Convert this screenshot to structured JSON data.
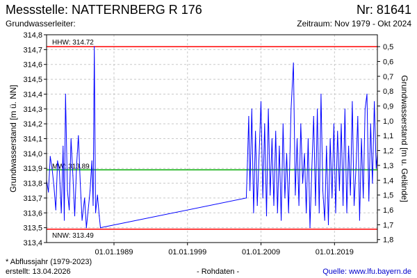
{
  "header": {
    "title": "Messstelle: NATTERNBERG R 176",
    "number": "Nr: 81641",
    "aquifer": "Grundwasserleiter:",
    "period": "Zeitraum: Nov 1979 - Okt 2024"
  },
  "footer": {
    "note": "* Abflussjahr (1979-2023)",
    "created": "erstellt:  13.04.2026",
    "raw": "- Rohdaten -",
    "source": "Quelle: www.lfu.bayern.de"
  },
  "colors": {
    "series": "#0000ff",
    "hhw": "#ff0000",
    "nnw": "#ff0000",
    "mw": "#00aa00",
    "grid": "#c8c8c8"
  },
  "chart_data": {
    "type": "line",
    "title": "Messstelle: NATTERNBERG R 176",
    "ylabel": "Grundwasserstand [m ü. NN]",
    "ylabel_right": "Grundwasserstand [m u. Gelände]",
    "ylim": [
      313.4,
      314.8
    ],
    "yticks": [
      "314,8",
      "314,7",
      "314,6",
      "314,5",
      "314,4",
      "314,3",
      "314,2",
      "314,1",
      "314,0",
      "313,9",
      "313,8",
      "313,7",
      "313,6",
      "313,5",
      "313,4"
    ],
    "yticks_right": [
      "0,5",
      "0,6",
      "0,7",
      "0,8",
      "0,9",
      "1,0",
      "1,1",
      "1,2",
      "1,3",
      "1,4",
      "1,5",
      "1,6",
      "1,7",
      "1,8"
    ],
    "yticks_right_values": [
      314.72,
      314.62,
      314.52,
      314.42,
      314.32,
      314.22,
      314.12,
      314.02,
      313.92,
      313.82,
      313.72,
      313.62,
      313.52,
      313.42
    ],
    "xlim": [
      "1979-11-01",
      "2024-10-31"
    ],
    "xticks": [
      "01.01.1989",
      "01.01.1999",
      "01.01.2009",
      "01.01.2019"
    ],
    "xtick_dates": [
      "1989-01-01",
      "1999-01-01",
      "2009-01-01",
      "2019-01-01"
    ],
    "reference_lines": [
      {
        "label": "HHW: 314.72",
        "value": 314.72,
        "color": "#ff0000"
      },
      {
        "label": "MW: 313.89",
        "value": 313.89,
        "color": "#00aa00"
      },
      {
        "label": "NNW: 313.49",
        "value": 313.49,
        "color": "#ff0000"
      }
    ],
    "series": [
      {
        "values": [
          [
            "1979-11-01",
            313.82
          ],
          [
            "1980-02-01",
            313.74
          ],
          [
            "1980-05-01",
            313.98
          ],
          [
            "1980-08-01",
            313.9
          ],
          [
            "1980-11-01",
            313.78
          ],
          [
            "1981-02-01",
            313.62
          ],
          [
            "1981-05-01",
            313.95
          ],
          [
            "1981-08-01",
            313.88
          ],
          [
            "1981-11-01",
            313.6
          ],
          [
            "1982-02-01",
            314.05
          ],
          [
            "1982-04-01",
            313.55
          ],
          [
            "1982-06-01",
            314.4
          ],
          [
            "1982-09-01",
            313.75
          ],
          [
            "1982-12-01",
            313.62
          ],
          [
            "1983-03-01",
            314.1
          ],
          [
            "1983-06-01",
            313.85
          ],
          [
            "1983-09-01",
            313.58
          ],
          [
            "1983-12-01",
            313.92
          ],
          [
            "1984-03-01",
            314.12
          ],
          [
            "1984-06-01",
            313.8
          ],
          [
            "1984-09-01",
            313.55
          ],
          [
            "1985-01-01",
            313.7
          ],
          [
            "1985-04-01",
            313.5
          ],
          [
            "1985-07-01",
            313.62
          ],
          [
            "1985-10-01",
            313.75
          ],
          [
            "1986-01-01",
            313.95
          ],
          [
            "1986-03-01",
            313.65
          ],
          [
            "1986-05-01",
            314.72
          ],
          [
            "1986-07-01",
            313.6
          ],
          [
            "1986-10-01",
            313.72
          ],
          [
            "1987-01-01",
            313.58
          ],
          [
            "1987-03-01",
            313.5
          ],
          [
            "2007-01-01",
            313.7
          ],
          [
            "2007-03-01",
            313.95
          ],
          [
            "2007-05-01",
            314.25
          ],
          [
            "2007-07-01",
            313.75
          ],
          [
            "2007-10-01",
            314.3
          ],
          [
            "2008-01-01",
            313.6
          ],
          [
            "2008-04-01",
            314.15
          ],
          [
            "2008-07-01",
            313.65
          ],
          [
            "2008-10-01",
            314.0
          ],
          [
            "2009-01-01",
            314.35
          ],
          [
            "2009-04-01",
            313.7
          ],
          [
            "2009-07-01",
            314.2
          ],
          [
            "2009-10-01",
            313.58
          ],
          [
            "2010-01-01",
            314.3
          ],
          [
            "2010-04-01",
            313.72
          ],
          [
            "2010-07-01",
            314.1
          ],
          [
            "2010-10-01",
            313.65
          ],
          [
            "2011-01-01",
            314.15
          ],
          [
            "2011-04-01",
            313.6
          ],
          [
            "2011-07-01",
            314.05
          ],
          [
            "2011-10-01",
            313.55
          ],
          [
            "2012-01-01",
            314.2
          ],
          [
            "2012-04-01",
            313.7
          ],
          [
            "2012-07-01",
            314.0
          ],
          [
            "2012-10-01",
            313.6
          ],
          [
            "2013-02-01",
            314.3
          ],
          [
            "2013-06-01",
            314.61
          ],
          [
            "2013-09-01",
            313.72
          ],
          [
            "2013-12-01",
            314.1
          ],
          [
            "2014-03-01",
            313.65
          ],
          [
            "2014-06-01",
            314.2
          ],
          [
            "2014-09-01",
            313.8
          ],
          [
            "2014-12-01",
            314.0
          ],
          [
            "2015-03-01",
            313.6
          ],
          [
            "2015-06-01",
            314.1
          ],
          [
            "2015-09-01",
            313.5
          ],
          [
            "2015-12-01",
            313.9
          ],
          [
            "2016-03-01",
            314.25
          ],
          [
            "2016-06-01",
            313.65
          ],
          [
            "2016-09-01",
            314.3
          ],
          [
            "2016-12-01",
            313.6
          ],
          [
            "2017-03-01",
            314.4
          ],
          [
            "2017-06-01",
            313.75
          ],
          [
            "2017-09-01",
            313.55
          ],
          [
            "2017-12-01",
            314.05
          ],
          [
            "2018-03-01",
            313.52
          ],
          [
            "2018-06-01",
            314.1
          ],
          [
            "2018-09-01",
            313.7
          ],
          [
            "2018-12-01",
            314.2
          ],
          [
            "2019-03-01",
            313.6
          ],
          [
            "2019-06-01",
            314.15
          ],
          [
            "2019-09-01",
            313.75
          ],
          [
            "2019-12-01",
            314.2
          ],
          [
            "2020-03-01",
            313.65
          ],
          [
            "2020-06-01",
            314.3
          ],
          [
            "2020-09-01",
            313.6
          ],
          [
            "2020-12-01",
            314.05
          ],
          [
            "2021-03-01",
            313.72
          ],
          [
            "2021-06-01",
            314.35
          ],
          [
            "2021-09-01",
            313.65
          ],
          [
            "2021-12-01",
            313.9
          ],
          [
            "2022-03-01",
            314.25
          ],
          [
            "2022-06-01",
            313.55
          ],
          [
            "2022-09-01",
            314.1
          ],
          [
            "2022-12-01",
            313.7
          ],
          [
            "2023-03-01",
            314.3
          ],
          [
            "2023-06-01",
            314.4
          ],
          [
            "2023-09-01",
            313.68
          ],
          [
            "2023-12-01",
            314.2
          ],
          [
            "2024-03-01",
            313.8
          ],
          [
            "2024-06-01",
            314.35
          ],
          [
            "2024-09-01",
            313.9
          ],
          [
            "2024-10-31",
            314.0
          ]
        ]
      }
    ]
  }
}
